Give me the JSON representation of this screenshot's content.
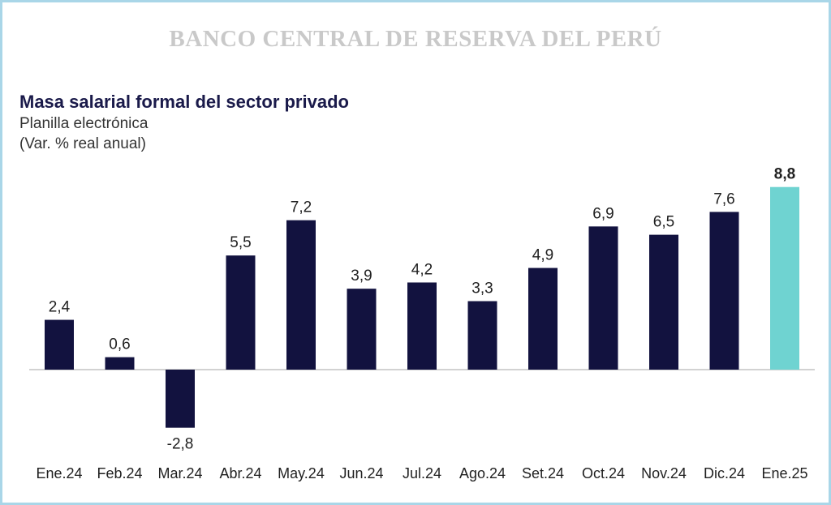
{
  "header": {
    "watermark": "BANCO CENTRAL DE RESERVA DEL PERÚ"
  },
  "colors": {
    "bar": "#12123f",
    "highlight": "#6fd3d1",
    "highlight_label": "#2bb3c5",
    "baseline": "#b8b8b8"
  },
  "chart_data": {
    "type": "bar",
    "title": "Masa salarial formal del sector privado",
    "subtitle": "Planilla electrónica",
    "unit": "(Var. % real anual)",
    "categories": [
      "Ene.24",
      "Feb.24",
      "Mar.24",
      "Abr.24",
      "May.24",
      "Jun.24",
      "Jul.24",
      "Ago.24",
      "Set.24",
      "Oct.24",
      "Nov.24",
      "Dic.24",
      "Ene.25"
    ],
    "values": [
      2.4,
      0.6,
      -2.8,
      5.5,
      7.2,
      3.9,
      4.2,
      3.3,
      4.9,
      6.9,
      6.5,
      7.6,
      8.8
    ],
    "value_labels": [
      "2,4",
      "0,6",
      "-2,8",
      "5,5",
      "7,2",
      "3,9",
      "4,2",
      "3,3",
      "4,9",
      "6,9",
      "6,5",
      "7,6",
      "8,8"
    ],
    "highlight_index": 12,
    "grid": false,
    "legend": "none"
  }
}
